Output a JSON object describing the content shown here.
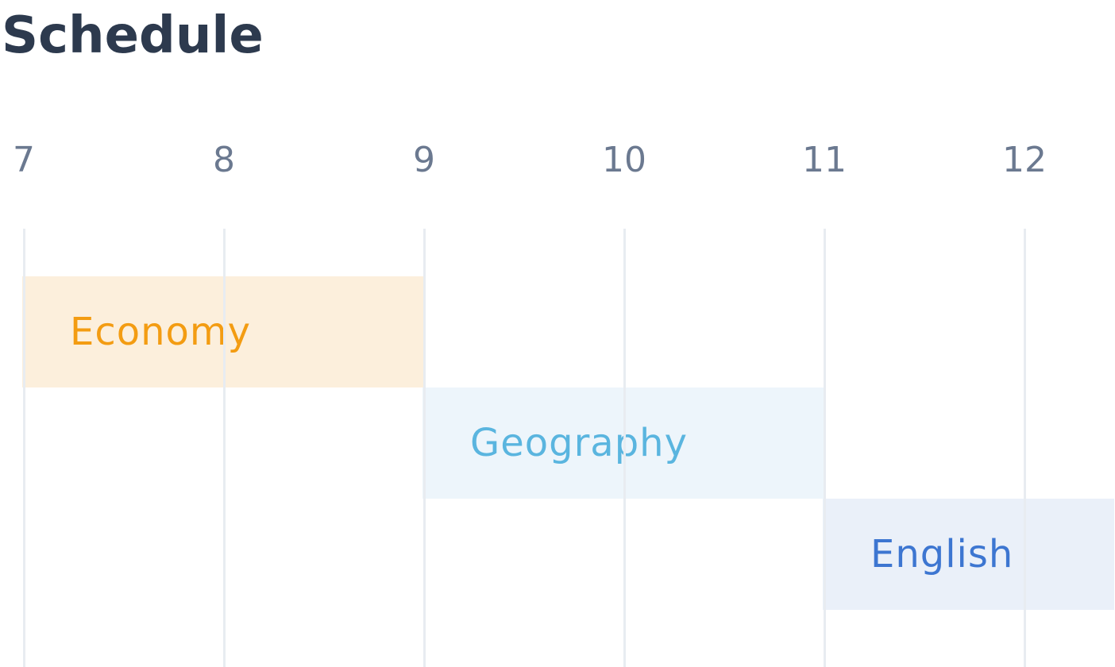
{
  "page": {
    "title": "Schedule"
  },
  "timeline": {
    "hours": [
      "7",
      "8",
      "9",
      "10",
      "11",
      "12"
    ],
    "start_hour": 7,
    "end_hour": 12
  },
  "events": [
    {
      "label": "Economy",
      "start": 7,
      "end": 9,
      "color": "#f39c12",
      "bg": "#fcefdc"
    },
    {
      "label": "Geography",
      "start": 9,
      "end": 11,
      "color": "#5ab5df",
      "bg": "#edf5fb"
    },
    {
      "label": "English",
      "start": 11,
      "end": 12.45,
      "color": "#3d76d1",
      "bg": "#eaf0f9"
    }
  ]
}
